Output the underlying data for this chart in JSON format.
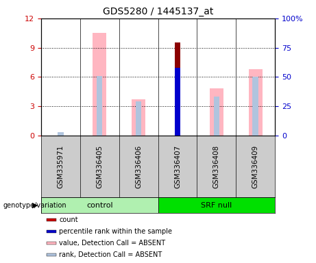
{
  "title": "GDS5280 / 1445137_at",
  "samples": [
    "GSM335971",
    "GSM336405",
    "GSM336406",
    "GSM336407",
    "GSM336408",
    "GSM336409"
  ],
  "groups": [
    "control",
    "control",
    "control",
    "SRF null",
    "SRF null",
    "SRF null"
  ],
  "group_labels": [
    "control",
    "SRF null"
  ],
  "group_colors": [
    "#b0f0b0",
    "#00e000"
  ],
  "ylim_left": [
    0,
    12
  ],
  "ylim_right": [
    0,
    100
  ],
  "yticks_left": [
    0,
    3,
    6,
    9,
    12
  ],
  "yticks_right": [
    0,
    25,
    50,
    75,
    100
  ],
  "yticklabels_left": [
    "0",
    "3",
    "6",
    "9",
    "12"
  ],
  "yticklabels_right": [
    "0",
    "25",
    "50",
    "75",
    "100%"
  ],
  "count_values": [
    0,
    0,
    0,
    9.5,
    0,
    0
  ],
  "rank_values_pct": [
    0,
    0,
    0,
    58,
    0,
    0
  ],
  "absent_value_values": [
    0,
    10.5,
    3.7,
    0,
    4.8,
    6.8
  ],
  "absent_rank_values_pct": [
    3,
    51,
    29,
    0,
    33,
    50
  ],
  "count_color": "#8b0000",
  "rank_color": "#0000cd",
  "absent_value_color": "#ffb6c1",
  "absent_rank_color": "#b0c4de",
  "legend_labels": [
    "count",
    "percentile rank within the sample",
    "value, Detection Call = ABSENT",
    "rank, Detection Call = ABSENT"
  ],
  "legend_colors": [
    "#cc0000",
    "#0000cc",
    "#ffb6c1",
    "#b0c4de"
  ],
  "left_axis_color": "#cc0000",
  "right_axis_color": "#0000cc",
  "sample_box_color": "#cccccc",
  "plot_bg": "#ffffff"
}
